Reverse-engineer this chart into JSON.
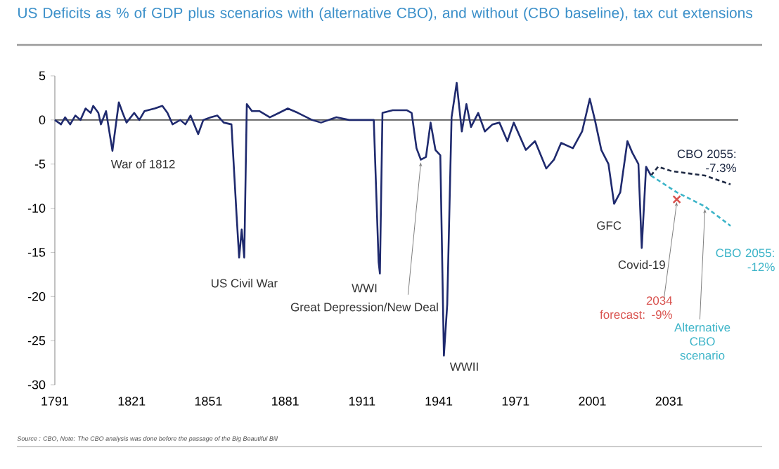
{
  "chart_data": {
    "type": "line",
    "title": "US Deficits as % of GDP plus scenarios with (alternative CBO), and without (CBO baseline), tax cut extensions",
    "xlim": [
      1791,
      2058
    ],
    "xticks": [
      1791,
      1821,
      1851,
      1881,
      1911,
      1941,
      1971,
      2001,
      2031
    ],
    "ylim": [
      -30,
      5
    ],
    "yticks": [
      -30,
      -25,
      -20,
      -15,
      -10,
      -5,
      0,
      5
    ],
    "grid": false,
    "ref_lines": [
      {
        "axis": "y",
        "value": 0,
        "color": "#555555"
      }
    ],
    "series": [
      {
        "color": "#1f2a6e",
        "line_style": "solid",
        "x": [
          1791,
          1793.4,
          1795,
          1797,
          1799,
          1801,
          1803,
          1805,
          1806,
          1808,
          1809,
          1811,
          1813.5,
          1816,
          1817.5,
          1819,
          1822,
          1824,
          1826,
          1830,
          1833,
          1835,
          1837,
          1840,
          1842,
          1844,
          1847,
          1849,
          1852,
          1854.5,
          1857,
          1860,
          1862,
          1863,
          1864,
          1865,
          1866,
          1868,
          1871,
          1875,
          1878.6,
          1882,
          1886,
          1891.5,
          1895,
          1901,
          1906,
          1911,
          1915.6,
          1917.5,
          1918,
          1919,
          1923,
          1928.6,
          1930.4,
          1932.3,
          1934,
          1936,
          1937.8,
          1939.7,
          1941.6,
          1943,
          1944.3,
          1946,
          1948,
          1950,
          1951.8,
          1953.6,
          1956.4,
          1959,
          1962,
          1964.7,
          1967.8,
          1970.3,
          1975,
          1978.6,
          1983,
          1986,
          1988.8,
          1993.4,
          1997,
          2000,
          2002,
          2004.5,
          2007.3,
          2009.5,
          2011.9,
          2014.7,
          2016.6,
          2019,
          2020.3,
          2022,
          2023.9
        ],
        "values": [
          0,
          -0.5,
          0.3,
          -0.5,
          0.5,
          0,
          1.3,
          0.8,
          1.6,
          0.8,
          -0.5,
          1,
          -3.5,
          2,
          0.8,
          -0.3,
          0.8,
          0,
          1,
          1.3,
          1.6,
          0.8,
          -0.5,
          0,
          -0.5,
          0.5,
          -1.6,
          0,
          0.3,
          0.5,
          -0.3,
          -0.5,
          -10.8,
          -15.6,
          -12.4,
          -15.6,
          1.8,
          1,
          1,
          0.3,
          0.8,
          1.3,
          0.8,
          0,
          -0.3,
          0.3,
          0,
          0,
          0,
          -16.1,
          -17.4,
          0.8,
          1.1,
          1.1,
          0.8,
          -3.2,
          -4.5,
          -4.2,
          -0.3,
          -3.4,
          -4,
          -26.7,
          -20.9,
          0.3,
          4.2,
          -1.3,
          1.8,
          -0.8,
          0.8,
          -1.3,
          -0.5,
          -0.3,
          -2.4,
          -0.3,
          -3.4,
          -2.4,
          -5.5,
          -4.5,
          -2.6,
          -3.2,
          -1.3,
          2.4,
          0,
          -3.4,
          -5,
          -9.5,
          -8.2,
          -2.4,
          -3.7,
          -5,
          -14.5,
          -5.3,
          -6.3
        ]
      },
      {
        "color": "#1f2a44",
        "line_style": "dashed",
        "x": [
          2023.9,
          2026.7,
          2032,
          2045,
          2055
        ],
        "values": [
          -6.3,
          -5.3,
          -5.8,
          -6.3,
          -7.3
        ]
      },
      {
        "color": "#3cb4c8",
        "line_style": "dashed",
        "x": [
          2023.9,
          2034,
          2045,
          2055
        ],
        "values": [
          -6.3,
          -8.2,
          -9.8,
          -12
        ]
      },
      {
        "type": "scatter",
        "marker": "cross",
        "color": "#d9534f",
        "x": [
          2034
        ],
        "values": [
          -9
        ]
      }
    ],
    "annotations": [
      {
        "text": "War of 1812",
        "x": 1813.5,
        "y": -3.5
      },
      {
        "text": "US Civil War",
        "x": 1865,
        "y": -15.6
      },
      {
        "text": "WWI",
        "x": 1918,
        "y": -17.4
      },
      {
        "text": "Great Depression/New Deal",
        "x": 1934,
        "y": -4.5
      },
      {
        "text": "WWII",
        "x": 1943,
        "y": -26.7
      },
      {
        "text": "GFC",
        "x": 2009.5,
        "y": -9.5
      },
      {
        "text": "Covid-19",
        "x": 2020.3,
        "y": -14.5
      },
      {
        "text": "CBO 2055: -7.3%",
        "x": 2055,
        "y": -7.3
      },
      {
        "text": "CBO 2055: -12%",
        "x": 2055,
        "y": -12
      },
      {
        "text": "2034 forecast: -9%",
        "x": 2034,
        "y": -9
      },
      {
        "text": "Alternative CBO scenario",
        "x": 2045,
        "y": -9.8
      },
      "Source : CBO, Note: The CBO analysis was done before the passage of the Big Beautiful Bill"
    ]
  }
}
